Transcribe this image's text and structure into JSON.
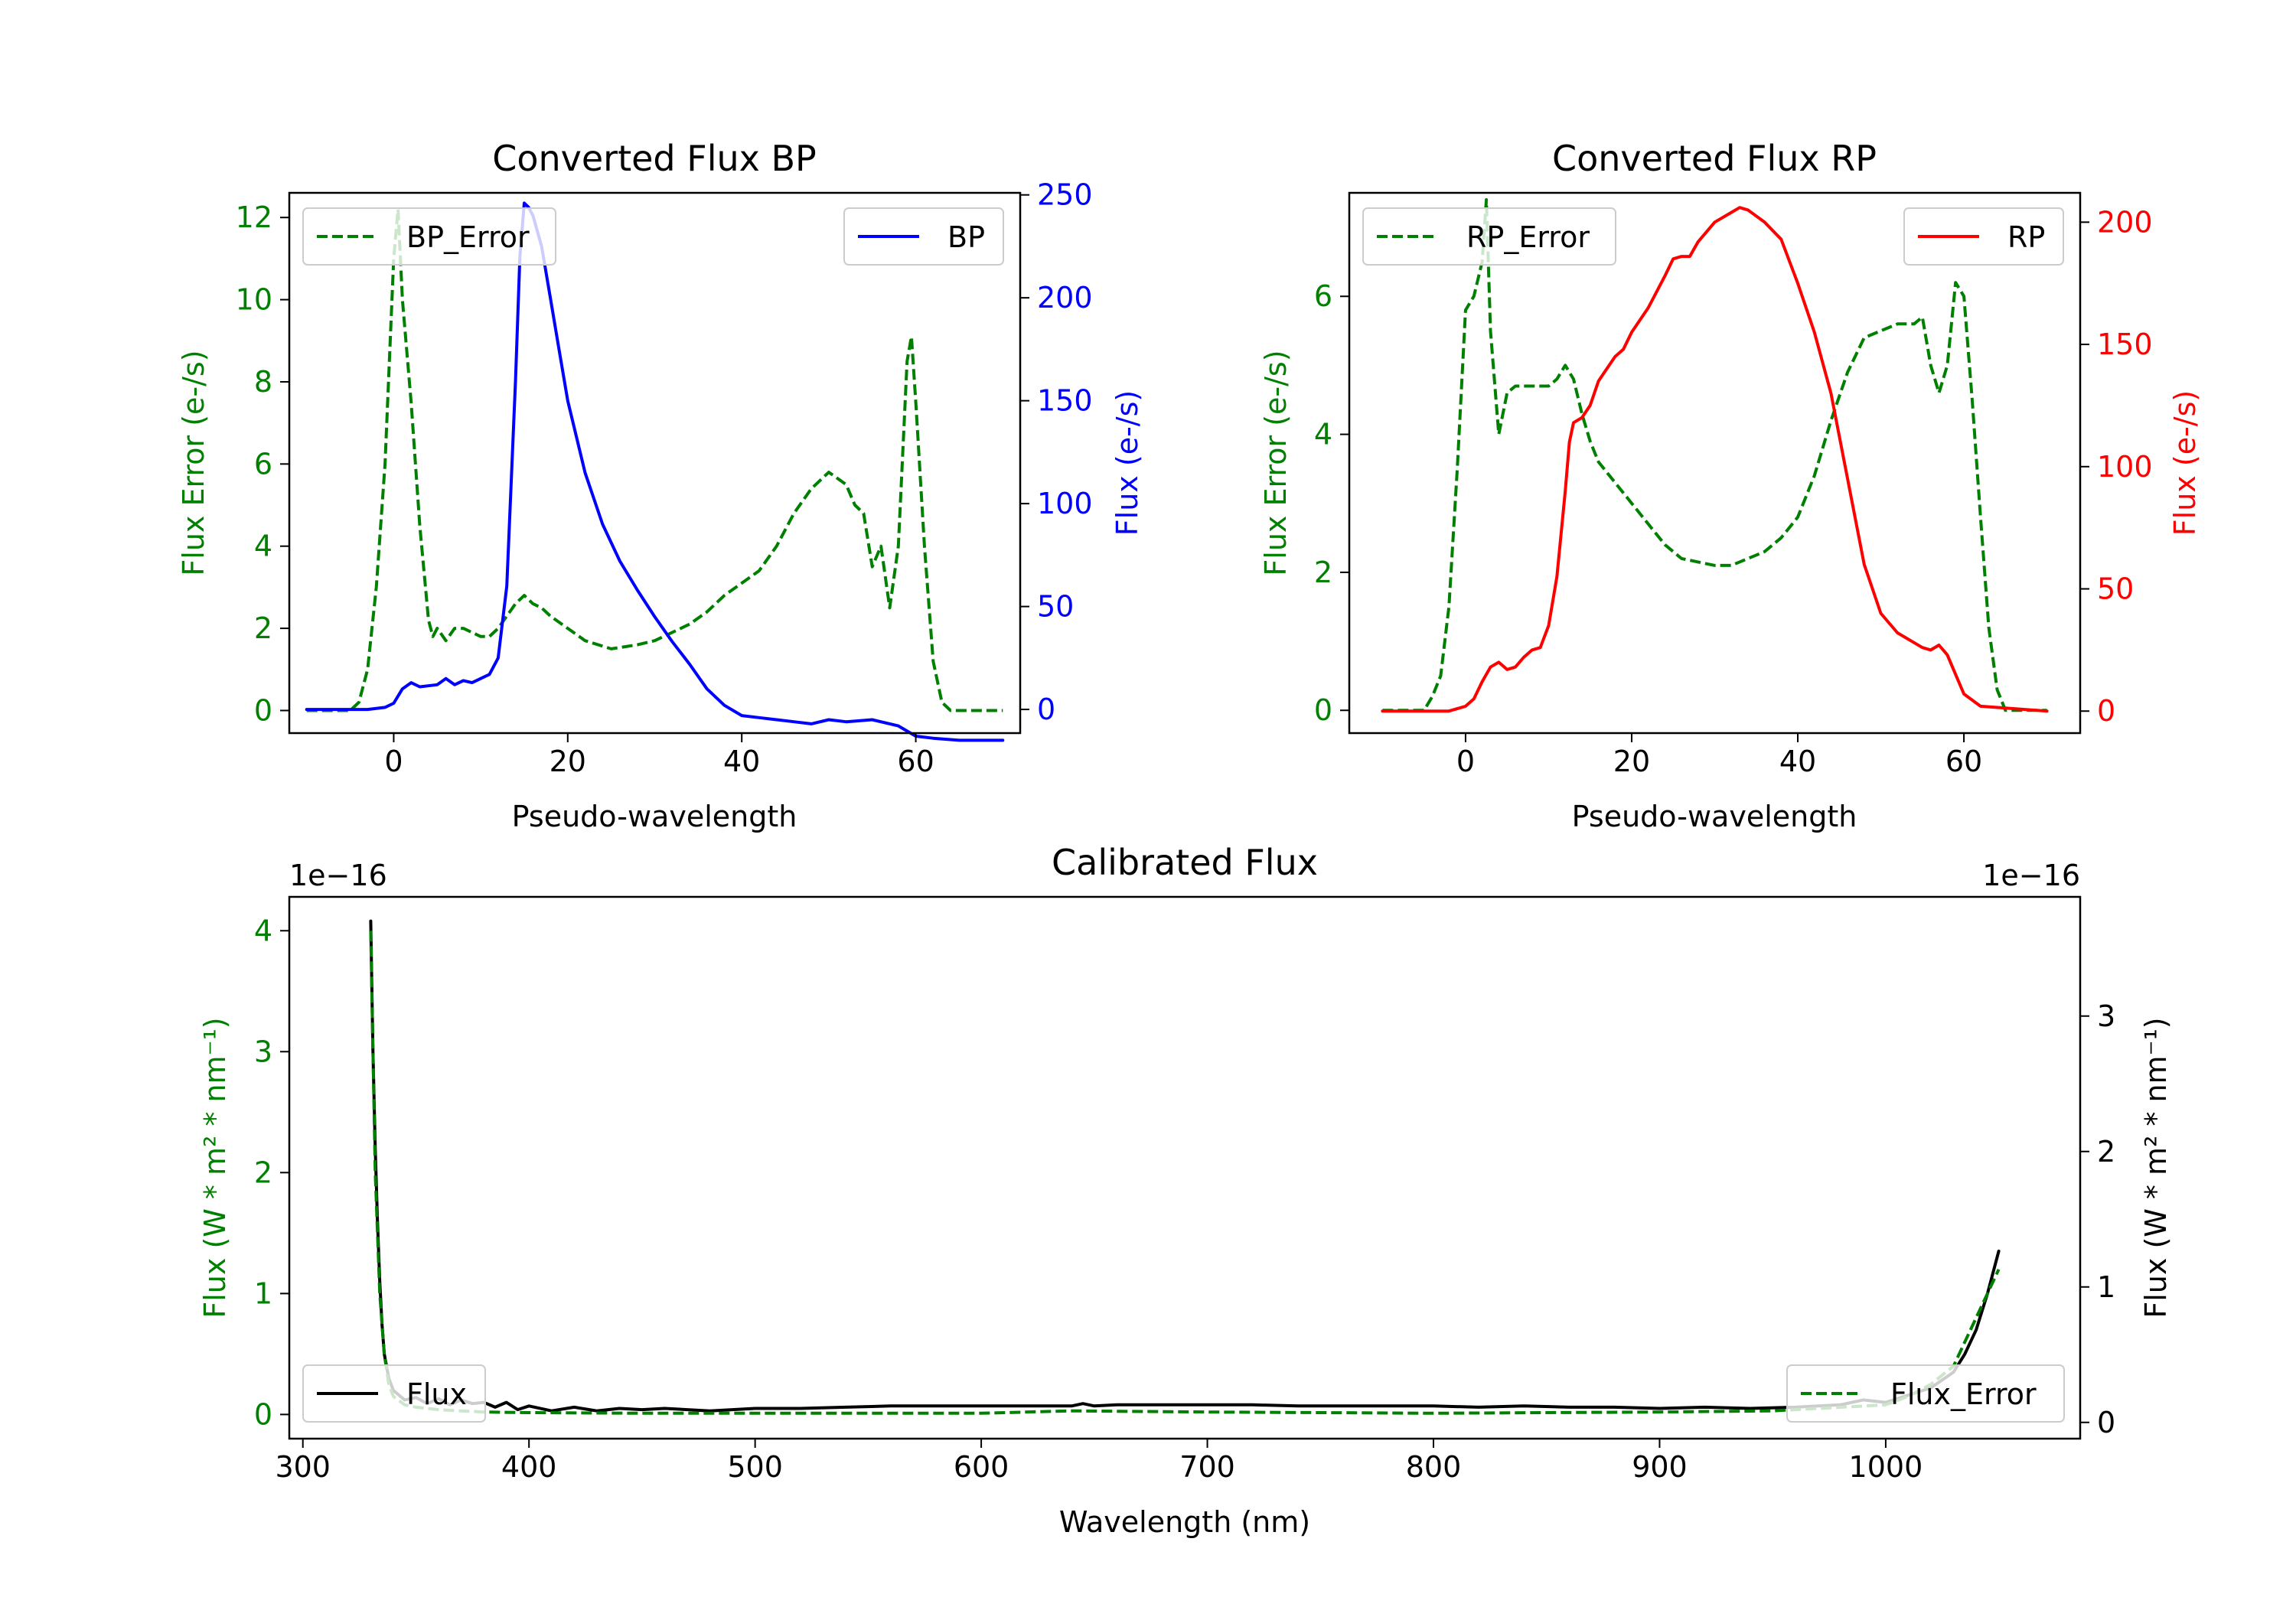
{
  "figure": {
    "width_hint": "3000x2100",
    "background": "#ffffff"
  },
  "chart_data": [
    {
      "id": "bp",
      "type": "line",
      "title": "Converted Flux BP",
      "xlabel": "Pseudo-wavelength",
      "ylabel_left": "Flux Error (e-/s)",
      "ylabel_right": "Flux (e-/s)",
      "xlim": [
        -12,
        72
      ],
      "ylim_left": [
        -0.55,
        12.6
      ],
      "ylim_right": [
        -11.5,
        251
      ],
      "xticks": [
        0,
        20,
        40,
        60
      ],
      "yticks_left": [
        0,
        2,
        4,
        6,
        8,
        10,
        12
      ],
      "yticks_right": [
        0,
        50,
        100,
        150,
        200,
        250
      ],
      "left_color": "#008000",
      "right_color": "#0000ff",
      "legend_left": "BP_Error",
      "legend_right": "BP",
      "series": [
        {
          "name": "BP_Error",
          "axis": "left",
          "style": "dashed",
          "color": "#008000",
          "x": [
            -10,
            -5,
            -4,
            -3,
            -2,
            -1,
            0,
            0.5,
            1,
            2,
            3,
            4,
            4.5,
            5,
            6,
            7,
            8,
            9,
            10,
            11,
            12,
            13,
            14,
            15,
            16,
            17,
            18,
            20,
            22,
            25,
            28,
            30,
            32,
            34,
            36,
            38,
            40,
            42,
            44,
            46,
            48,
            50,
            52,
            53,
            54,
            55,
            56,
            57,
            58,
            59,
            59.5,
            60,
            61,
            62,
            63,
            64,
            65,
            70
          ],
          "values": [
            0,
            0,
            0.2,
            1,
            3,
            6,
            11,
            12.2,
            10,
            7.5,
            4.5,
            2.2,
            1.8,
            2.0,
            1.7,
            2.0,
            2.0,
            1.9,
            1.8,
            1.8,
            2.0,
            2.3,
            2.6,
            2.8,
            2.6,
            2.5,
            2.3,
            2.0,
            1.7,
            1.5,
            1.6,
            1.7,
            1.9,
            2.1,
            2.4,
            2.8,
            3.1,
            3.4,
            4.0,
            4.8,
            5.4,
            5.8,
            5.5,
            5.0,
            4.8,
            3.5,
            4.0,
            2.5,
            4.0,
            8.5,
            9.1,
            7.5,
            4.0,
            1.2,
            0.2,
            0,
            0,
            0
          ]
        },
        {
          "name": "BP",
          "axis": "right",
          "style": "solid",
          "color": "#0000ff",
          "x": [
            -10,
            -3,
            -1,
            0,
            1,
            2,
            3,
            5,
            6,
            7,
            8,
            9,
            10,
            11,
            12,
            13,
            14,
            14.5,
            15,
            15.5,
            16,
            17,
            18,
            19,
            20,
            22,
            24,
            26,
            28,
            30,
            32,
            34,
            36,
            38,
            40,
            42,
            44,
            46,
            48,
            50,
            52,
            55,
            58,
            60,
            62,
            65,
            70
          ],
          "values": [
            0,
            0,
            1,
            3,
            10,
            13,
            11,
            12,
            15,
            12,
            14,
            13,
            15,
            17,
            25,
            60,
            160,
            220,
            246,
            244,
            240,
            225,
            200,
            175,
            150,
            115,
            90,
            72,
            58,
            45,
            33,
            22,
            10,
            2,
            -3,
            -4,
            -5,
            -6,
            -7,
            -5,
            -6,
            -5,
            -8,
            -13,
            -14,
            -15,
            -15
          ]
        }
      ]
    },
    {
      "id": "rp",
      "type": "line",
      "title": "Converted Flux RP",
      "xlabel": "Pseudo-wavelength",
      "ylabel_left": "Flux Error (e-/s)",
      "ylabel_right": "Flux (e-/s)",
      "xlim": [
        -14,
        74
      ],
      "ylim_left": [
        -0.33,
        7.5
      ],
      "ylim_right": [
        -9,
        212
      ],
      "xticks": [
        0,
        20,
        40,
        60
      ],
      "yticks_left": [
        0,
        2,
        4,
        6
      ],
      "yticks_right": [
        0,
        50,
        100,
        150,
        200
      ],
      "left_color": "#008000",
      "right_color": "#ff0000",
      "legend_left": "RP_Error",
      "legend_right": "RP",
      "series": [
        {
          "name": "RP_Error",
          "axis": "left",
          "style": "dashed",
          "color": "#008000",
          "x": [
            -10,
            -5,
            -4,
            -3,
            -2,
            -1,
            0,
            1,
            2,
            2.5,
            3,
            4,
            5,
            6,
            7,
            8,
            9,
            10,
            11,
            12,
            13,
            14,
            15,
            16,
            18,
            20,
            22,
            24,
            26,
            28,
            30,
            32,
            34,
            36,
            38,
            40,
            42,
            44,
            46,
            48,
            50,
            52,
            54,
            55,
            56,
            57,
            58,
            59,
            60,
            61,
            62,
            63,
            64,
            65,
            70
          ],
          "values": [
            0,
            0,
            0.2,
            0.5,
            1.5,
            3.5,
            5.8,
            6.0,
            6.5,
            7.4,
            5.5,
            4.0,
            4.6,
            4.7,
            4.7,
            4.7,
            4.7,
            4.7,
            4.8,
            5.0,
            4.8,
            4.3,
            3.9,
            3.6,
            3.3,
            3.0,
            2.7,
            2.4,
            2.2,
            2.15,
            2.1,
            2.1,
            2.2,
            2.3,
            2.5,
            2.8,
            3.4,
            4.2,
            4.9,
            5.4,
            5.5,
            5.6,
            5.6,
            5.7,
            5.0,
            4.6,
            5.0,
            6.2,
            6.0,
            4.5,
            2.8,
            1.2,
            0.3,
            0,
            0
          ]
        },
        {
          "name": "RP",
          "axis": "right",
          "style": "solid",
          "color": "#ff0000",
          "x": [
            -10,
            -2,
            0,
            1,
            2,
            3,
            4,
            5,
            6,
            7,
            8,
            9,
            10,
            11,
            12,
            12.5,
            13,
            14,
            15,
            16,
            17,
            18,
            19,
            20,
            22,
            24,
            25,
            26,
            27,
            28,
            30,
            32,
            33,
            34,
            36,
            38,
            40,
            42,
            44,
            46,
            48,
            50,
            52,
            54,
            55,
            56,
            57,
            58,
            59,
            60,
            62,
            70
          ],
          "values": [
            0,
            0,
            2,
            5,
            12,
            18,
            20,
            17,
            18,
            22,
            25,
            26,
            35,
            55,
            90,
            110,
            118,
            120,
            125,
            135,
            140,
            145,
            148,
            155,
            165,
            178,
            185,
            186,
            186,
            192,
            200,
            204,
            206,
            205,
            200,
            193,
            175,
            155,
            130,
            95,
            60,
            40,
            32,
            28,
            26,
            25,
            27,
            23,
            15,
            7,
            2,
            0
          ]
        }
      ]
    },
    {
      "id": "cal",
      "type": "line",
      "title": "Calibrated Flux",
      "xlabel": "Wavelength (nm)",
      "ylabel_left": "Flux (W * m² * nm⁻¹)",
      "ylabel_right": "Flux (W * m² * nm⁻¹)",
      "offset_left": "1e−16",
      "offset_right": "1e−16",
      "xlim": [
        294,
        1086
      ],
      "ylim_left": [
        -0.2,
        4.28
      ],
      "ylim_right": [
        -0.12,
        3.88
      ],
      "xticks": [
        300,
        400,
        500,
        600,
        700,
        800,
        900,
        1000
      ],
      "yticks_left": [
        0,
        1,
        2,
        3,
        4
      ],
      "yticks_right": [
        0,
        1,
        2,
        3
      ],
      "left_color": "#008000",
      "right_color": "#000000",
      "legend_left": "Flux",
      "legend_right": "Flux_Error",
      "series": [
        {
          "name": "Flux",
          "axis": "left",
          "style": "solid",
          "color": "#000000",
          "x": [
            330,
            331,
            332,
            333,
            334,
            335,
            336,
            338,
            340,
            345,
            350,
            355,
            360,
            365,
            370,
            375,
            380,
            385,
            390,
            395,
            400,
            410,
            420,
            430,
            440,
            450,
            460,
            480,
            500,
            520,
            540,
            560,
            580,
            600,
            620,
            640,
            645,
            650,
            660,
            680,
            700,
            720,
            740,
            760,
            780,
            800,
            820,
            840,
            860,
            880,
            900,
            920,
            940,
            960,
            980,
            990,
            1000,
            1010,
            1020,
            1030,
            1035,
            1040,
            1045,
            1050
          ],
          "values": [
            4.08,
            3.0,
            2.2,
            1.6,
            1.1,
            0.75,
            0.5,
            0.3,
            0.2,
            0.12,
            0.14,
            0.09,
            0.13,
            0.08,
            0.12,
            0.09,
            0.1,
            0.06,
            0.1,
            0.04,
            0.07,
            0.03,
            0.06,
            0.03,
            0.05,
            0.04,
            0.05,
            0.03,
            0.05,
            0.05,
            0.06,
            0.07,
            0.07,
            0.07,
            0.07,
            0.07,
            0.09,
            0.07,
            0.08,
            0.08,
            0.08,
            0.08,
            0.07,
            0.07,
            0.07,
            0.07,
            0.06,
            0.07,
            0.06,
            0.06,
            0.05,
            0.06,
            0.05,
            0.06,
            0.08,
            0.12,
            0.1,
            0.16,
            0.22,
            0.35,
            0.5,
            0.7,
            1.0,
            1.35
          ]
        },
        {
          "name": "Flux_Error",
          "axis": "left",
          "style": "dashed",
          "color": "#008000",
          "x": [
            330,
            332,
            334,
            336,
            338,
            340,
            345,
            350,
            360,
            370,
            380,
            400,
            450,
            500,
            550,
            600,
            640,
            700,
            800,
            900,
            950,
            1000,
            1010,
            1020,
            1030,
            1040,
            1050
          ],
          "values": [
            4.0,
            2.0,
            1.0,
            0.5,
            0.25,
            0.15,
            0.08,
            0.06,
            0.04,
            0.03,
            0.02,
            0.015,
            0.01,
            0.01,
            0.01,
            0.01,
            0.03,
            0.02,
            0.01,
            0.02,
            0.03,
            0.08,
            0.15,
            0.25,
            0.4,
            0.8,
            1.2
          ]
        }
      ]
    }
  ]
}
